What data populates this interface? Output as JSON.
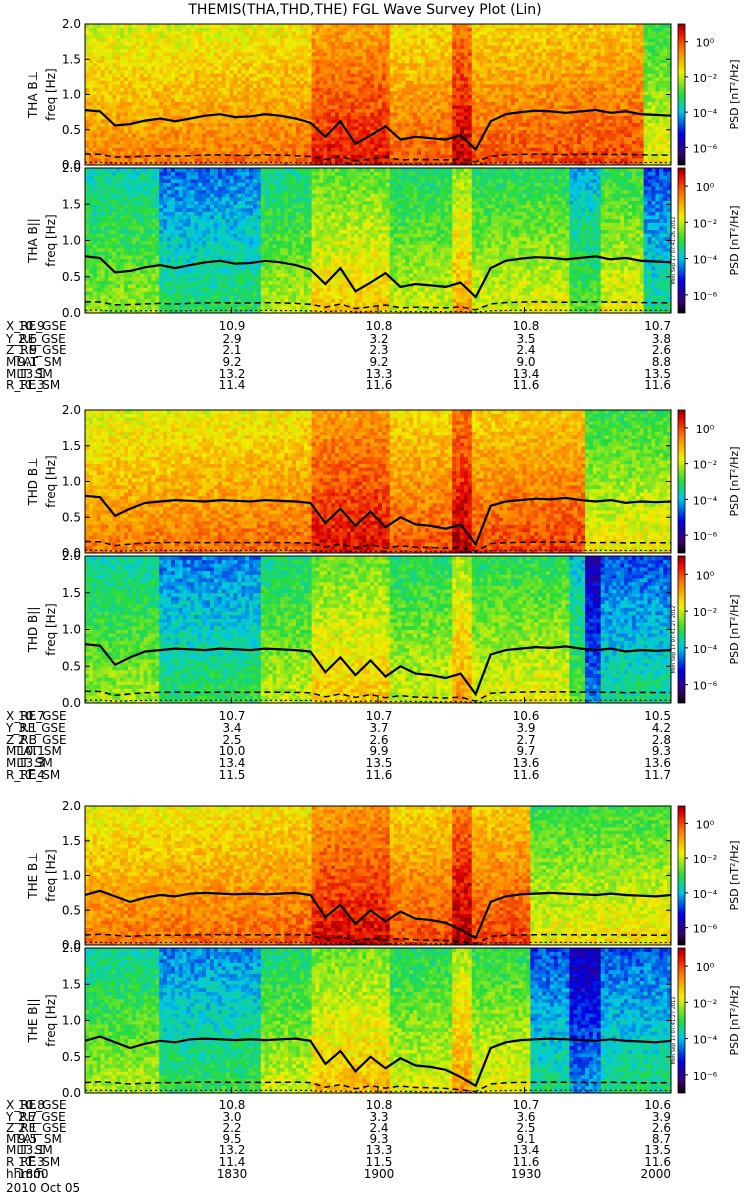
{
  "title": "THEMIS(THA,THD,THE) FGL Wave Survey Plot (Lin)",
  "chart_data": [
    {
      "type": "heatmap",
      "probe": "THA",
      "panels": [
        {
          "ylabel": "THA B⊥",
          "unit_label": "freq [Hz]",
          "timestamp": ""
        },
        {
          "ylabel": "THA B||",
          "unit_label": "freq [Hz]",
          "timestamp": "Mon Sep 17 07:41:26 2012"
        }
      ],
      "ylim": [
        0,
        2.0
      ],
      "yticks": [
        "0.0",
        "0.5",
        "1.0",
        "1.5",
        "2.0"
      ],
      "colorbar": {
        "label": "PSD [nT²/Hz]",
        "ticks": [
          "10⁰",
          "10⁻²",
          "10⁻⁴",
          "10⁻⁶"
        ],
        "log_range": [
          -7,
          1
        ]
      },
      "ephemeris": [
        {
          "name": "X_RE_GSE",
          "values": [
            "10.9",
            "10.9",
            "10.8",
            "10.8",
            "10.7"
          ]
        },
        {
          "name": "Y_RE_GSE",
          "values": [
            "2.6",
            "2.9",
            "3.2",
            "3.5",
            "3.8"
          ]
        },
        {
          "name": "Z_RE_GSE",
          "values": [
            "1.9",
            "2.1",
            "2.3",
            "2.4",
            "2.6"
          ]
        },
        {
          "name": "MLAT_SM",
          "values": [
            "9.1",
            "9.2",
            "9.2",
            "9.0",
            "8.8"
          ]
        },
        {
          "name": "MLT_SM",
          "values": [
            "13.1",
            "13.2",
            "13.3",
            "13.4",
            "13.5"
          ]
        },
        {
          "name": "R_RE_SM",
          "values": [
            "11.3",
            "11.4",
            "11.6",
            "11.6",
            "11.6"
          ]
        }
      ],
      "gyro_line_hz": [
        0.78,
        0.76,
        0.56,
        0.58,
        0.63,
        0.66,
        0.62,
        0.66,
        0.7,
        0.72,
        0.68,
        0.69,
        0.72,
        0.7,
        0.66,
        0.6,
        0.4,
        0.62,
        0.3,
        0.42,
        0.55,
        0.36,
        0.4,
        0.38,
        0.36,
        0.42,
        0.22,
        0.62,
        0.72,
        0.75,
        0.77,
        0.76,
        0.74,
        0.76,
        0.78,
        0.74,
        0.76,
        0.72,
        0.71,
        0.7
      ]
    },
    {
      "type": "heatmap",
      "probe": "THD",
      "panels": [
        {
          "ylabel": "THD B⊥",
          "unit_label": "freq [Hz]",
          "timestamp": ""
        },
        {
          "ylabel": "THD B||",
          "unit_label": "freq [Hz]",
          "timestamp": "Mon Sep 17 07:41:27 2012"
        }
      ],
      "ylim": [
        0,
        2.0
      ],
      "yticks": [
        "0.0",
        "0.5",
        "1.0",
        "1.5",
        "2.0"
      ],
      "colorbar": {
        "label": "PSD [nT²/Hz]",
        "ticks": [
          "10⁰",
          "10⁻²",
          "10⁻⁴",
          "10⁻⁶"
        ],
        "log_range": [
          -7,
          1
        ]
      },
      "ephemeris": [
        {
          "name": "X_RE_GSE",
          "values": [
            "10.7",
            "10.7",
            "10.7",
            "10.6",
            "10.5"
          ]
        },
        {
          "name": "Y_RE_GSE",
          "values": [
            "3.1",
            "3.4",
            "3.7",
            "3.9",
            "4.2"
          ]
        },
        {
          "name": "Z_RE_GSE",
          "values": [
            "2.3",
            "2.5",
            "2.6",
            "2.7",
            "2.8"
          ]
        },
        {
          "name": "MLAT_SM",
          "values": [
            "10.1",
            "10.0",
            "9.9",
            "9.7",
            "9.3"
          ]
        },
        {
          "name": "MLT_SM",
          "values": [
            "13.3",
            "13.4",
            "13.5",
            "13.6",
            "13.6"
          ]
        },
        {
          "name": "R_RE_SM",
          "values": [
            "11.4",
            "11.5",
            "11.6",
            "11.6",
            "11.7"
          ]
        }
      ],
      "gyro_line_hz": [
        0.8,
        0.78,
        0.52,
        0.62,
        0.7,
        0.72,
        0.74,
        0.73,
        0.72,
        0.74,
        0.73,
        0.72,
        0.74,
        0.73,
        0.72,
        0.7,
        0.42,
        0.62,
        0.38,
        0.58,
        0.36,
        0.5,
        0.4,
        0.38,
        0.34,
        0.4,
        0.12,
        0.66,
        0.72,
        0.74,
        0.76,
        0.75,
        0.77,
        0.74,
        0.72,
        0.74,
        0.7,
        0.72,
        0.71,
        0.72
      ]
    },
    {
      "type": "heatmap",
      "probe": "THE",
      "panels": [
        {
          "ylabel": "THE B⊥",
          "unit_label": "freq [Hz]",
          "timestamp": ""
        },
        {
          "ylabel": "THE B||",
          "unit_label": "freq [Hz]",
          "timestamp": "Mon Sep 17 07:41:27 2012"
        }
      ],
      "ylim": [
        0,
        2.0
      ],
      "yticks": [
        "0.0",
        "0.5",
        "1.0",
        "1.5",
        "2.0"
      ],
      "colorbar": {
        "label": "PSD [nT²/Hz]",
        "ticks": [
          "10⁰",
          "10⁻²",
          "10⁻⁴",
          "10⁻⁶"
        ],
        "log_range": [
          -7,
          1
        ]
      },
      "ephemeris": [
        {
          "name": "X_RE_GSE",
          "values": [
            "10.8",
            "10.8",
            "10.8",
            "10.7",
            "10.6"
          ]
        },
        {
          "name": "Y_RE_GSE",
          "values": [
            "2.7",
            "3.0",
            "3.3",
            "3.6",
            "3.9"
          ]
        },
        {
          "name": "Z_RE_GSE",
          "values": [
            "2.1",
            "2.2",
            "2.4",
            "2.5",
            "2.6"
          ]
        },
        {
          "name": "MLAT_SM",
          "values": [
            "9.5",
            "9.5",
            "9.3",
            "9.1",
            "8.7"
          ]
        },
        {
          "name": "MLT_SM",
          "values": [
            "13.1",
            "13.2",
            "13.3",
            "13.4",
            "13.5"
          ]
        },
        {
          "name": "R_RE_SM",
          "values": [
            "11.3",
            "11.4",
            "11.5",
            "11.6",
            "11.6"
          ]
        }
      ],
      "gyro_line_hz": [
        0.72,
        0.78,
        0.7,
        0.62,
        0.68,
        0.72,
        0.7,
        0.74,
        0.75,
        0.74,
        0.73,
        0.74,
        0.73,
        0.74,
        0.75,
        0.72,
        0.4,
        0.58,
        0.3,
        0.5,
        0.34,
        0.48,
        0.38,
        0.36,
        0.32,
        0.22,
        0.1,
        0.62,
        0.7,
        0.73,
        0.74,
        0.75,
        0.74,
        0.73,
        0.72,
        0.74,
        0.72,
        0.71,
        0.7,
        0.72
      ]
    }
  ],
  "time_axis": {
    "row_label": "hhmm",
    "ticks": [
      "1800",
      "1830",
      "1900",
      "1930",
      "2000"
    ],
    "date": "2010 Oct 05"
  },
  "colors": {
    "curve": "#000000",
    "frame": "#000000",
    "background": "#ffffff"
  }
}
